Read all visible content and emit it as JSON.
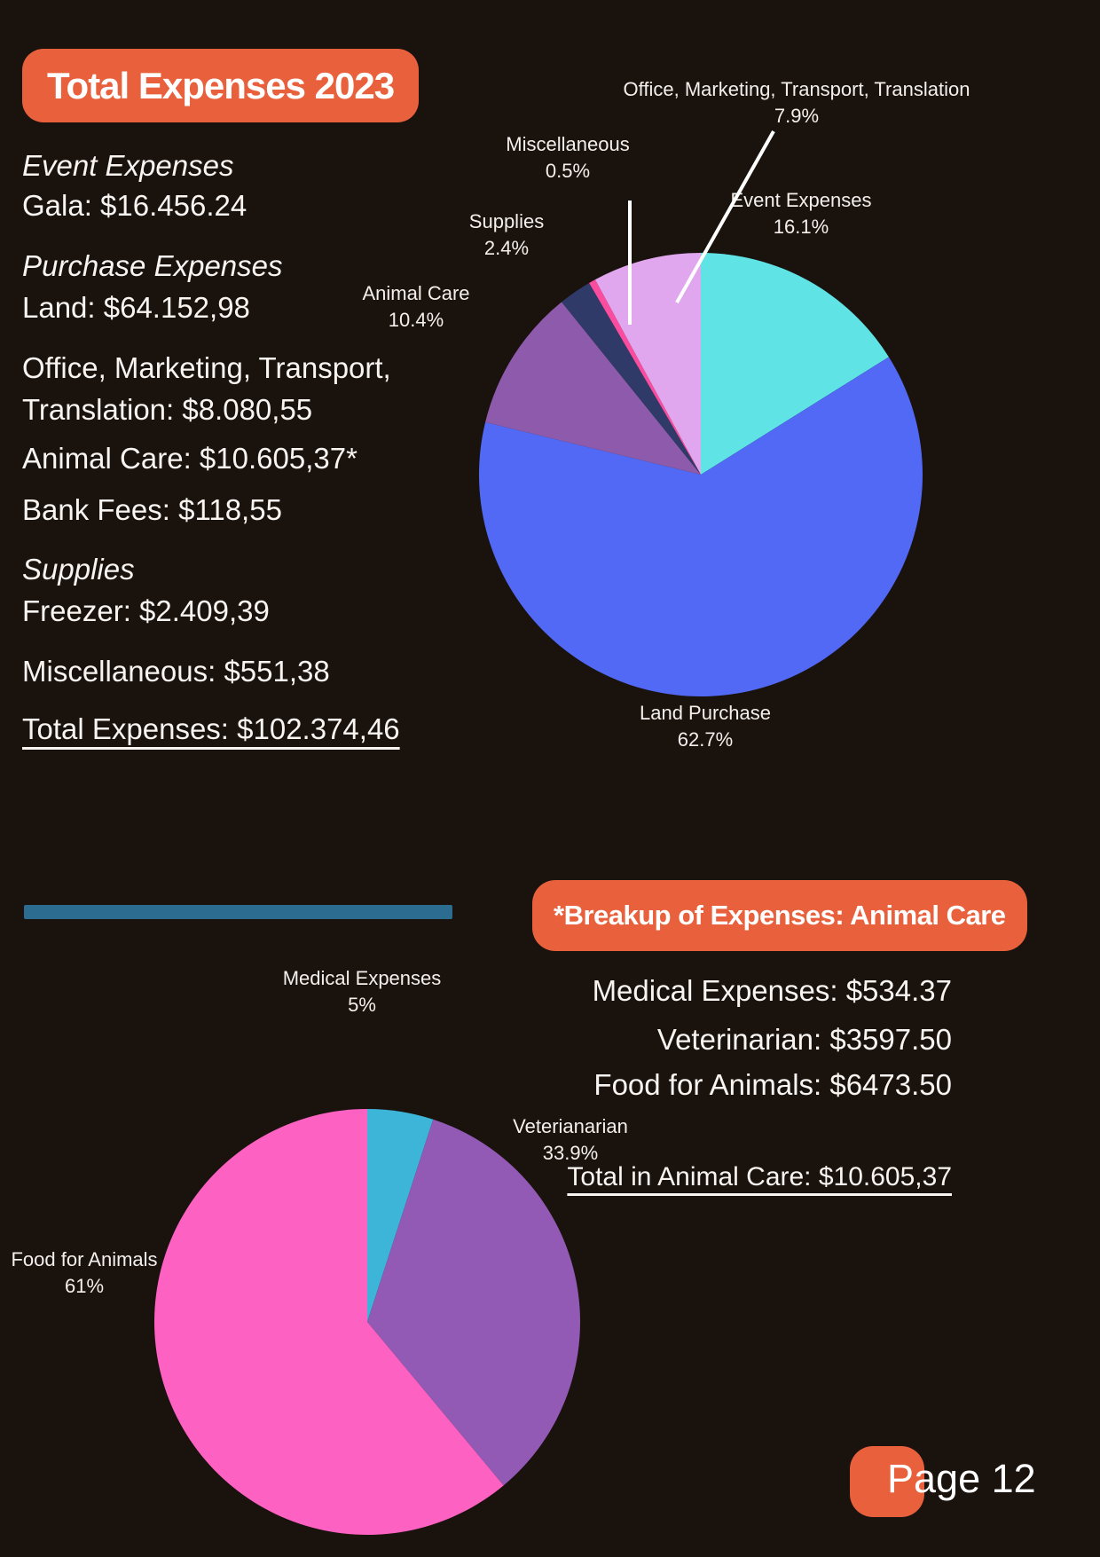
{
  "colors": {
    "background": "#1a120d",
    "accent_orange": "#e8603c",
    "divider_blue": "#2c6c91",
    "text": "#f7f4f1",
    "leader_line": "#ffffff"
  },
  "header": {
    "title": "Total Expenses 2023"
  },
  "expense_summary": {
    "lines": [
      {
        "text": "Event Expenses",
        "style": "italic"
      },
      {
        "text": "Gala: $16.456.24",
        "style": "normal"
      },
      {
        "text": "Purchase Expenses",
        "style": "italic"
      },
      {
        "text": "Land: $64.152,98",
        "style": "normal"
      },
      {
        "text": "Office, Marketing, Transport,",
        "style": "normal"
      },
      {
        "text": "Translation: $8.080,55",
        "style": "normal"
      },
      {
        "text": "Animal Care: $10.605,37*",
        "style": "normal"
      },
      {
        "text": "Bank Fees: $118,55",
        "style": "normal"
      },
      {
        "text": "Supplies",
        "style": "italic"
      },
      {
        "text": "Freezer: $2.409,39",
        "style": "normal"
      },
      {
        "text": "Miscellaneous: $551,38",
        "style": "normal"
      },
      {
        "text": "Total Expenses: $102.374,46",
        "style": "underline"
      }
    ]
  },
  "animal_care_breakdown": {
    "heading": "*Breakup of Expenses: Animal Care",
    "lines": [
      "Medical Expenses: $534.37",
      "Veterinarian: $3597.50",
      "Food for Animals: $6473.50"
    ],
    "total": "Total in Animal Care: $10.605,37"
  },
  "footer": {
    "page_label": "Page 12"
  },
  "chart_data": [
    {
      "type": "pie",
      "title": "Total Expenses 2023",
      "legend_position": "around-labels",
      "categories": [
        "Event Expenses",
        "Land Purchase",
        "Animal Care",
        "Supplies",
        "Miscellaneous",
        "Office, Marketing, Transport, Translation"
      ],
      "values": [
        16.1,
        62.7,
        10.4,
        2.4,
        0.5,
        7.9
      ],
      "start_angle_deg": 0,
      "direction": "clockwise",
      "slices": [
        {
          "label": "Event Expenses",
          "pct": 16.1,
          "pct_label": "16.1%",
          "color": "#5fe3e4"
        },
        {
          "label": "Land Purchase",
          "pct": 62.7,
          "pct_label": "62.7%",
          "color": "#5269f5"
        },
        {
          "label": "Animal Care",
          "pct": 10.4,
          "pct_label": "10.4%",
          "color": "#8e5aab"
        },
        {
          "label": "Supplies",
          "pct": 2.4,
          "pct_label": "2.4%",
          "color": "#2f3a69"
        },
        {
          "label": "Miscellaneous",
          "pct": 0.5,
          "pct_label": "0.5%",
          "color": "#fa4da0"
        },
        {
          "label": "Office, Marketing, Transport, Translation",
          "pct": 7.9,
          "pct_label": "7.9%",
          "color": "#e1a7ee"
        }
      ]
    },
    {
      "type": "pie",
      "title": "Breakup of Expenses: Animal Care",
      "legend_position": "around-labels",
      "categories": [
        "Medical Expenses",
        "Veterianarian",
        "Food for Animals"
      ],
      "values": [
        5,
        33.9,
        61
      ],
      "start_angle_deg": 0,
      "direction": "clockwise",
      "slices": [
        {
          "label": "Medical Expenses",
          "pct": 5,
          "pct_label": "5%",
          "color": "#3cb5d8"
        },
        {
          "label": "Veterianarian",
          "pct": 33.9,
          "pct_label": "33.9%",
          "color": "#925ab5"
        },
        {
          "label": "Food for Animals",
          "pct": 61,
          "pct_label": "61%",
          "color": "#fd62c3"
        }
      ]
    }
  ]
}
